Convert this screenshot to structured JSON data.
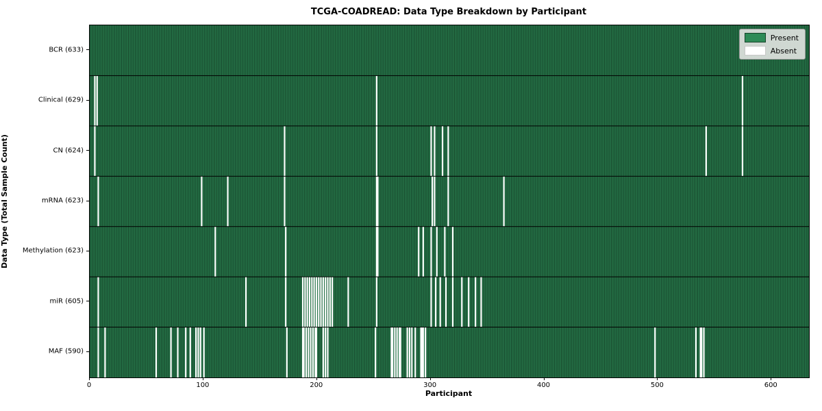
{
  "figure": {
    "title": "TCGA-COADREAD: Data Type Breakdown by Participant",
    "xlabel": "Participant",
    "ylabel": "Data Type (Total Sample Count)"
  },
  "legend": {
    "position": "upper right",
    "items": [
      {
        "label": "Present",
        "color": "#2e8b57",
        "border": "#16442a"
      },
      {
        "label": "Absent",
        "color": "#ffffff",
        "border": "#c8c8c8"
      }
    ]
  },
  "chart_data": {
    "type": "heatmap",
    "title": "TCGA-COADREAD: Data Type Breakdown by Participant",
    "xlabel": "Participant",
    "ylabel": "Data Type (Total Sample Count)",
    "n_participants": 633,
    "xlim": [
      0,
      633
    ],
    "x_ticks": [
      0,
      100,
      200,
      300,
      400,
      500,
      600
    ],
    "grid": false,
    "legend_position": "upper right",
    "colors": {
      "present": "#2e8b57",
      "present_edge": "#16442a",
      "absent": "#ffffff",
      "separator": "#000000"
    },
    "value_encoding": {
      "present": 1,
      "absent": 0
    },
    "rows": [
      {
        "label": "BCR",
        "count": 633,
        "tick_label": "BCR (633)",
        "absent": []
      },
      {
        "label": "Clinical",
        "count": 629,
        "tick_label": "Clinical (629)",
        "absent": [
          4,
          6,
          252,
          574
        ]
      },
      {
        "label": "CN",
        "count": 624,
        "tick_label": "CN (624)",
        "absent": [
          4,
          171,
          252,
          300,
          303,
          310,
          315,
          542,
          574
        ]
      },
      {
        "label": "mRNA",
        "count": 623,
        "tick_label": "mRNA (623)",
        "absent": [
          7,
          98,
          121,
          171,
          252,
          253,
          301,
          303,
          315,
          364
        ]
      },
      {
        "label": "Methylation",
        "count": 623,
        "tick_label": "Methylation (623)",
        "absent": [
          110,
          172,
          252,
          253,
          289,
          293,
          300,
          305,
          312,
          319
        ]
      },
      {
        "label": "miR",
        "count": 605,
        "tick_label": "miR (605)",
        "absent": [
          7,
          137,
          172,
          187,
          189,
          191,
          193,
          195,
          197,
          199,
          201,
          203,
          205,
          207,
          209,
          211,
          213,
          227,
          252,
          300,
          304,
          308,
          313,
          319,
          327,
          333,
          339,
          344
        ]
      },
      {
        "label": "MAF",
        "count": 590,
        "tick_label": "MAF (590)",
        "absent": [
          7,
          13,
          58,
          71,
          77,
          84,
          88,
          93,
          95,
          97,
          100,
          173,
          187,
          188,
          190,
          192,
          194,
          196,
          198,
          199,
          205,
          207,
          209,
          251,
          265,
          266,
          268,
          270,
          272,
          273,
          279,
          281,
          283,
          286,
          291,
          292,
          293,
          295,
          497,
          533,
          537,
          538,
          540
        ]
      }
    ]
  }
}
